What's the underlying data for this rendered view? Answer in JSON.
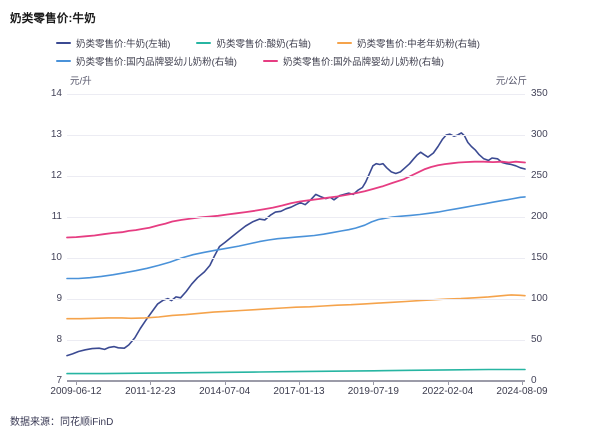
{
  "page": {
    "title": "奶类零售价:牛奶",
    "source": "数据来源：同花顺iFinD"
  },
  "chart_data": {
    "type": "line",
    "title": "奶类零售价:牛奶",
    "grid": "horizontal",
    "legend_position": "top",
    "x_axis": {
      "tick_labels": [
        "2009-06-12",
        "2011-12-23",
        "2014-07-04",
        "2017-01-13",
        "2019-07-19",
        "2022-02-04",
        "2024-08-09"
      ],
      "note": "x values below are fractions of plot width, 0 = 2009-06-12, 1 = 2024-08-09"
    },
    "left_axis": {
      "unit": "元/升",
      "min": 7,
      "max": 14,
      "ticks": [
        14,
        13,
        12,
        11,
        10,
        9,
        8,
        7
      ]
    },
    "right_axis": {
      "unit": "元/公斤",
      "min": 0,
      "max": 350,
      "ticks": [
        350,
        300,
        250,
        200,
        150,
        100,
        50,
        0
      ]
    },
    "legend_rows": [
      [
        0,
        1,
        2
      ],
      [
        3,
        4
      ]
    ],
    "series": [
      {
        "name": "奶类零售价:牛奶(左轴)",
        "axis": "left",
        "color": "#3b4a92",
        "stroke_width": 1.6,
        "points": [
          [
            0,
            7.62
          ],
          [
            0.012,
            7.66
          ],
          [
            0.025,
            7.72
          ],
          [
            0.04,
            7.76
          ],
          [
            0.055,
            7.79
          ],
          [
            0.07,
            7.8
          ],
          [
            0.082,
            7.77
          ],
          [
            0.092,
            7.82
          ],
          [
            0.103,
            7.84
          ],
          [
            0.112,
            7.81
          ],
          [
            0.125,
            7.8
          ],
          [
            0.135,
            7.88
          ],
          [
            0.148,
            8.05
          ],
          [
            0.16,
            8.28
          ],
          [
            0.172,
            8.48
          ],
          [
            0.185,
            8.68
          ],
          [
            0.198,
            8.88
          ],
          [
            0.21,
            8.97
          ],
          [
            0.22,
            9.01
          ],
          [
            0.228,
            8.96
          ],
          [
            0.238,
            9.05
          ],
          [
            0.248,
            9.03
          ],
          [
            0.26,
            9.18
          ],
          [
            0.272,
            9.36
          ],
          [
            0.285,
            9.52
          ],
          [
            0.3,
            9.66
          ],
          [
            0.312,
            9.82
          ],
          [
            0.322,
            10.05
          ],
          [
            0.333,
            10.28
          ],
          [
            0.345,
            10.38
          ],
          [
            0.36,
            10.52
          ],
          [
            0.375,
            10.65
          ],
          [
            0.39,
            10.78
          ],
          [
            0.405,
            10.88
          ],
          [
            0.42,
            10.95
          ],
          [
            0.432,
            10.93
          ],
          [
            0.445,
            11.05
          ],
          [
            0.455,
            11.12
          ],
          [
            0.467,
            11.14
          ],
          [
            0.478,
            11.2
          ],
          [
            0.489,
            11.24
          ],
          [
            0.5,
            11.3
          ],
          [
            0.51,
            11.35
          ],
          [
            0.52,
            11.3
          ],
          [
            0.532,
            11.42
          ],
          [
            0.543,
            11.55
          ],
          [
            0.553,
            11.5
          ],
          [
            0.565,
            11.45
          ],
          [
            0.575,
            11.48
          ],
          [
            0.583,
            11.42
          ],
          [
            0.595,
            11.52
          ],
          [
            0.605,
            11.55
          ],
          [
            0.615,
            11.58
          ],
          [
            0.625,
            11.55
          ],
          [
            0.635,
            11.65
          ],
          [
            0.645,
            11.72
          ],
          [
            0.652,
            11.85
          ],
          [
            0.66,
            12.05
          ],
          [
            0.668,
            12.25
          ],
          [
            0.675,
            12.3
          ],
          [
            0.683,
            12.28
          ],
          [
            0.69,
            12.3
          ],
          [
            0.698,
            12.2
          ],
          [
            0.708,
            12.1
          ],
          [
            0.718,
            12.06
          ],
          [
            0.728,
            12.1
          ],
          [
            0.738,
            12.2
          ],
          [
            0.748,
            12.3
          ],
          [
            0.757,
            12.42
          ],
          [
            0.765,
            12.52
          ],
          [
            0.772,
            12.58
          ],
          [
            0.78,
            12.52
          ],
          [
            0.788,
            12.46
          ],
          [
            0.8,
            12.56
          ],
          [
            0.81,
            12.72
          ],
          [
            0.82,
            12.9
          ],
          [
            0.828,
            13.0
          ],
          [
            0.836,
            13.02
          ],
          [
            0.845,
            12.97
          ],
          [
            0.853,
            13.0
          ],
          [
            0.861,
            13.05
          ],
          [
            0.868,
            12.98
          ],
          [
            0.875,
            12.82
          ],
          [
            0.883,
            12.72
          ],
          [
            0.892,
            12.63
          ],
          [
            0.9,
            12.52
          ],
          [
            0.91,
            12.42
          ],
          [
            0.92,
            12.38
          ],
          [
            0.928,
            12.44
          ],
          [
            0.94,
            12.42
          ],
          [
            0.95,
            12.33
          ],
          [
            0.96,
            12.3
          ],
          [
            0.97,
            12.28
          ],
          [
            0.98,
            12.25
          ],
          [
            0.99,
            12.2
          ],
          [
            1,
            12.17
          ]
        ]
      },
      {
        "name": "奶类零售价:酸奶(右轴)",
        "axis": "right",
        "color": "#27b5a2",
        "stroke_width": 1.6,
        "points": [
          [
            0,
            9
          ],
          [
            0.08,
            9
          ],
          [
            0.16,
            9.5
          ],
          [
            0.25,
            10
          ],
          [
            0.33,
            10.5
          ],
          [
            0.42,
            11
          ],
          [
            0.5,
            11.5
          ],
          [
            0.58,
            12
          ],
          [
            0.67,
            12.5
          ],
          [
            0.75,
            13
          ],
          [
            0.83,
            13.5
          ],
          [
            0.92,
            14
          ],
          [
            1,
            14
          ]
        ]
      },
      {
        "name": "奶类零售价:中老年奶粉(右轴)",
        "axis": "right",
        "color": "#f5a34b",
        "stroke_width": 1.6,
        "points": [
          [
            0,
            76
          ],
          [
            0.03,
            76
          ],
          [
            0.06,
            76.5
          ],
          [
            0.09,
            77
          ],
          [
            0.12,
            77
          ],
          [
            0.14,
            76.5
          ],
          [
            0.17,
            77
          ],
          [
            0.2,
            78
          ],
          [
            0.23,
            80
          ],
          [
            0.26,
            81
          ],
          [
            0.29,
            82.5
          ],
          [
            0.32,
            84
          ],
          [
            0.35,
            85
          ],
          [
            0.38,
            86
          ],
          [
            0.41,
            87
          ],
          [
            0.44,
            88
          ],
          [
            0.47,
            89
          ],
          [
            0.5,
            90
          ],
          [
            0.53,
            90.5
          ],
          [
            0.56,
            91.5
          ],
          [
            0.59,
            92.5
          ],
          [
            0.62,
            93
          ],
          [
            0.65,
            94
          ],
          [
            0.68,
            95
          ],
          [
            0.71,
            96
          ],
          [
            0.74,
            97
          ],
          [
            0.77,
            98
          ],
          [
            0.8,
            99
          ],
          [
            0.83,
            100
          ],
          [
            0.86,
            100.5
          ],
          [
            0.89,
            101.5
          ],
          [
            0.92,
            102.5
          ],
          [
            0.95,
            104
          ],
          [
            0.97,
            105
          ],
          [
            0.99,
            104.5
          ],
          [
            1,
            104
          ]
        ]
      },
      {
        "name": "奶类零售价:国内品牌婴幼儿奶粉(右轴)",
        "axis": "right",
        "color": "#4a92d9",
        "stroke_width": 1.6,
        "points": [
          [
            0,
            125
          ],
          [
            0.025,
            125
          ],
          [
            0.05,
            126
          ],
          [
            0.075,
            127.5
          ],
          [
            0.1,
            129.5
          ],
          [
            0.125,
            132
          ],
          [
            0.15,
            134.5
          ],
          [
            0.175,
            137.5
          ],
          [
            0.2,
            141
          ],
          [
            0.225,
            145
          ],
          [
            0.25,
            150
          ],
          [
            0.275,
            154
          ],
          [
            0.3,
            157
          ],
          [
            0.325,
            159.5
          ],
          [
            0.35,
            162
          ],
          [
            0.375,
            164.5
          ],
          [
            0.4,
            167.5
          ],
          [
            0.42,
            170
          ],
          [
            0.44,
            172
          ],
          [
            0.46,
            173.5
          ],
          [
            0.48,
            174.5
          ],
          [
            0.5,
            175.5
          ],
          [
            0.52,
            176.5
          ],
          [
            0.54,
            177.5
          ],
          [
            0.56,
            179
          ],
          [
            0.58,
            181
          ],
          [
            0.6,
            183
          ],
          [
            0.615,
            184.5
          ],
          [
            0.63,
            186.5
          ],
          [
            0.65,
            190
          ],
          [
            0.665,
            194
          ],
          [
            0.68,
            197
          ],
          [
            0.695,
            198.5
          ],
          [
            0.71,
            200
          ],
          [
            0.73,
            201
          ],
          [
            0.75,
            202
          ],
          [
            0.77,
            203
          ],
          [
            0.79,
            204.5
          ],
          [
            0.81,
            206
          ],
          [
            0.83,
            208
          ],
          [
            0.85,
            210
          ],
          [
            0.87,
            212
          ],
          [
            0.89,
            214
          ],
          [
            0.91,
            216
          ],
          [
            0.93,
            218
          ],
          [
            0.95,
            220
          ],
          [
            0.97,
            222
          ],
          [
            0.99,
            224
          ],
          [
            1,
            224.5
          ]
        ]
      },
      {
        "name": "奶类零售价:国外品牌婴幼儿奶粉(右轴)",
        "axis": "right",
        "color": "#e63d82",
        "stroke_width": 1.8,
        "points": [
          [
            0,
            175
          ],
          [
            0.02,
            175.5
          ],
          [
            0.04,
            176.5
          ],
          [
            0.06,
            177.5
          ],
          [
            0.08,
            179
          ],
          [
            0.1,
            180.5
          ],
          [
            0.12,
            181.5
          ],
          [
            0.135,
            183
          ],
          [
            0.15,
            184
          ],
          [
            0.165,
            185.5
          ],
          [
            0.18,
            187
          ],
          [
            0.2,
            190
          ],
          [
            0.215,
            192
          ],
          [
            0.23,
            194.5
          ],
          [
            0.25,
            196.5
          ],
          [
            0.27,
            198
          ],
          [
            0.29,
            199.5
          ],
          [
            0.31,
            200.5
          ],
          [
            0.33,
            201.5
          ],
          [
            0.35,
            203
          ],
          [
            0.37,
            204.5
          ],
          [
            0.39,
            206
          ],
          [
            0.41,
            207.5
          ],
          [
            0.43,
            209.5
          ],
          [
            0.45,
            211.5
          ],
          [
            0.47,
            214
          ],
          [
            0.49,
            217
          ],
          [
            0.51,
            219
          ],
          [
            0.53,
            220.5
          ],
          [
            0.55,
            222
          ],
          [
            0.57,
            223.5
          ],
          [
            0.59,
            225
          ],
          [
            0.61,
            227
          ],
          [
            0.63,
            229
          ],
          [
            0.65,
            231.5
          ],
          [
            0.67,
            234.5
          ],
          [
            0.69,
            237.5
          ],
          [
            0.71,
            241.5
          ],
          [
            0.735,
            246
          ],
          [
            0.75,
            250
          ],
          [
            0.765,
            254
          ],
          [
            0.78,
            258
          ],
          [
            0.795,
            261
          ],
          [
            0.81,
            263
          ],
          [
            0.825,
            264.5
          ],
          [
            0.84,
            265.5
          ],
          [
            0.855,
            266.5
          ],
          [
            0.87,
            267
          ],
          [
            0.89,
            267.5
          ],
          [
            0.91,
            267.5
          ],
          [
            0.93,
            267
          ],
          [
            0.95,
            267.5
          ],
          [
            0.965,
            266.5
          ],
          [
            0.98,
            267.5
          ],
          [
            1,
            266.5
          ]
        ]
      }
    ]
  }
}
